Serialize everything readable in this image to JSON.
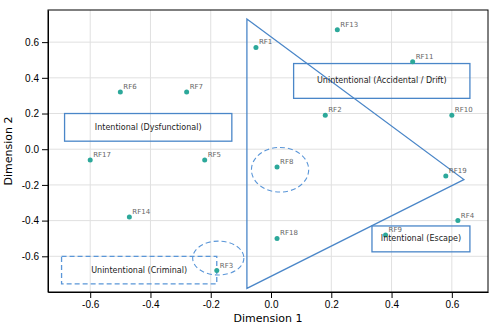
{
  "chart_data": {
    "type": "scatter",
    "labels": [
      "RF1",
      "RF2",
      "RF3",
      "RF4",
      "RF5",
      "RF6",
      "RF7",
      "RF8",
      "RF9",
      "RF10",
      "RF11",
      "RF13",
      "RF14",
      "RF17",
      "RF18",
      "RF19"
    ],
    "x": [
      -0.05,
      0.18,
      -0.18,
      0.62,
      -0.22,
      -0.5,
      -0.28,
      0.02,
      0.38,
      0.6,
      0.47,
      0.22,
      -0.47,
      -0.6,
      0.02,
      0.58
    ],
    "values": [
      0.57,
      0.19,
      -0.68,
      -0.4,
      -0.06,
      0.32,
      0.32,
      -0.1,
      -0.48,
      0.19,
      0.49,
      0.67,
      -0.38,
      -0.06,
      -0.5,
      -0.15
    ],
    "color": "#2ca89a",
    "xlabel": "Dimension 1",
    "ylabel": "Dimension 2",
    "xlim": [
      -0.74,
      0.72
    ],
    "ylim": [
      -0.8,
      0.78
    ],
    "xticks": [
      -0.6,
      -0.4,
      -0.2,
      {
        "value": 0,
        "label": "0.0"
      },
      0.2,
      0.4,
      0.6
    ],
    "yticks": [
      -0.6,
      -0.4,
      -0.2,
      {
        "value": 0,
        "label": "0.0"
      },
      0.2,
      0.4,
      0.6
    ],
    "grid": true,
    "annotations": [
      {
        "type": "polygon",
        "x": [
          -0.08,
          -0.08,
          0.64
        ],
        "y": [
          0.73,
          -0.78,
          -0.17
        ],
        "color": "#4a86c8",
        "line_style": "solid"
      },
      {
        "type": "ellipse",
        "cx": 0.03,
        "cy": -0.115,
        "rx": 0.095,
        "ry": 0.125,
        "color": "#5a96d8",
        "line_style": "dashed"
      },
      {
        "type": "ellipse",
        "cx": -0.175,
        "cy": -0.61,
        "rx": 0.085,
        "ry": 0.095,
        "color": "#5a96d8",
        "line_style": "dashed"
      },
      {
        "type": "box",
        "x": -0.685,
        "y": 0.045,
        "width": 0.555,
        "height": 0.155,
        "text": "Intentional (Dysfunctional)",
        "color": "#4a86c8",
        "line_style": "solid"
      },
      {
        "type": "box",
        "x": 0.075,
        "y": 0.285,
        "width": 0.585,
        "height": 0.195,
        "text": "Unintentional (Accidental / Drift)",
        "color": "#4a86c8",
        "line_style": "solid"
      },
      {
        "type": "box",
        "x": 0.335,
        "y": -0.575,
        "width": 0.325,
        "height": 0.145,
        "text": "Intentional (Escape)",
        "color": "#4a86c8",
        "line_style": "solid"
      },
      {
        "type": "box",
        "x": -0.695,
        "y": -0.755,
        "width": 0.515,
        "height": 0.155,
        "text": "Unintentional (Criminal)",
        "color": "#5a96d8",
        "line_style": "dashed"
      }
    ]
  }
}
